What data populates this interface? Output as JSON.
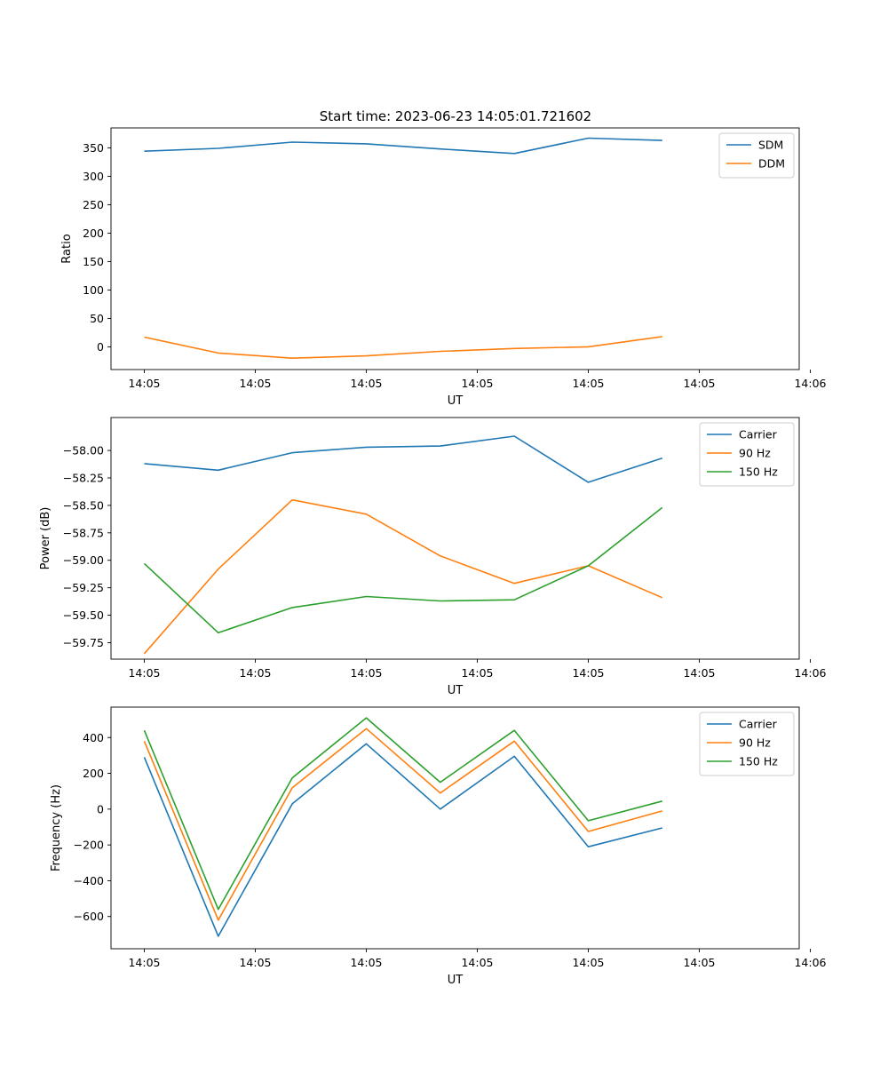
{
  "title": "Start time: 2023-06-23 14:05:01.721602",
  "colors": {
    "blue": "#1f77b4",
    "orange": "#ff7f0e",
    "green": "#2ca02c"
  },
  "chart_data": [
    {
      "type": "line",
      "xlabel": "UT",
      "ylabel": "Ratio",
      "xticks": [
        "14:05",
        "14:05",
        "14:05",
        "14:05",
        "14:05",
        "14:05",
        "14:06"
      ],
      "xlim": [
        -0.45,
        8.85
      ],
      "ylim": [
        -40,
        385
      ],
      "yticks": [
        0,
        50,
        100,
        150,
        200,
        250,
        300,
        350
      ],
      "ytick_labels": [
        "0",
        "50",
        "100",
        "150",
        "200",
        "250",
        "300",
        "350"
      ],
      "legend": "top-right",
      "series": [
        {
          "name": "SDM",
          "color": "#1f77b4",
          "values": [
            344,
            349,
            360,
            357,
            348,
            340,
            367,
            363
          ]
        },
        {
          "name": "DDM",
          "color": "#ff7f0e",
          "values": [
            17,
            -11,
            -20,
            -16,
            -8,
            -3,
            0,
            18
          ]
        }
      ]
    },
    {
      "type": "line",
      "xlabel": "UT",
      "ylabel": "Power (dB)",
      "xticks": [
        "14:05",
        "14:05",
        "14:05",
        "14:05",
        "14:05",
        "14:05",
        "14:06"
      ],
      "xlim": [
        -0.45,
        8.85
      ],
      "ylim": [
        -59.9,
        -57.7
      ],
      "yticks": [
        -59.75,
        -59.5,
        -59.25,
        -59.0,
        -58.75,
        -58.5,
        -58.25,
        -58.0
      ],
      "ytick_labels": [
        "−59.75",
        "−59.50",
        "−59.25",
        "−59.00",
        "−58.75",
        "−58.50",
        "−58.25",
        "−58.00"
      ],
      "legend": "top-right",
      "series": [
        {
          "name": "Carrier",
          "color": "#1f77b4",
          "values": [
            -58.12,
            -58.18,
            -58.02,
            -57.97,
            -57.96,
            -57.87,
            -58.29,
            -58.07
          ]
        },
        {
          "name": "90 Hz",
          "color": "#ff7f0e",
          "values": [
            -59.85,
            -59.08,
            -58.45,
            -58.58,
            -58.96,
            -59.21,
            -59.05,
            -59.34
          ]
        },
        {
          "name": "150 Hz",
          "color": "#2ca02c",
          "values": [
            -59.03,
            -59.66,
            -59.43,
            -59.33,
            -59.37,
            -59.36,
            -59.05,
            -58.52
          ]
        }
      ]
    },
    {
      "type": "line",
      "xlabel": "UT",
      "ylabel": "Frequency (Hz)",
      "xticks": [
        "14:05",
        "14:05",
        "14:05",
        "14:05",
        "14:05",
        "14:05",
        "14:06"
      ],
      "xlim": [
        -0.45,
        8.85
      ],
      "ylim": [
        -780,
        570
      ],
      "yticks": [
        -600,
        -400,
        -200,
        0,
        200,
        400
      ],
      "ytick_labels": [
        "−600",
        "−400",
        "−200",
        "0",
        "200",
        "400"
      ],
      "legend": "top-right",
      "series": [
        {
          "name": "Carrier",
          "color": "#1f77b4",
          "values": [
            290,
            -710,
            30,
            365,
            0,
            295,
            -210,
            -105
          ]
        },
        {
          "name": "90 Hz",
          "color": "#ff7f0e",
          "values": [
            380,
            -620,
            120,
            450,
            90,
            380,
            -125,
            -10
          ]
        },
        {
          "name": "150 Hz",
          "color": "#2ca02c",
          "values": [
            440,
            -560,
            175,
            510,
            150,
            440,
            -65,
            45
          ]
        }
      ]
    }
  ]
}
